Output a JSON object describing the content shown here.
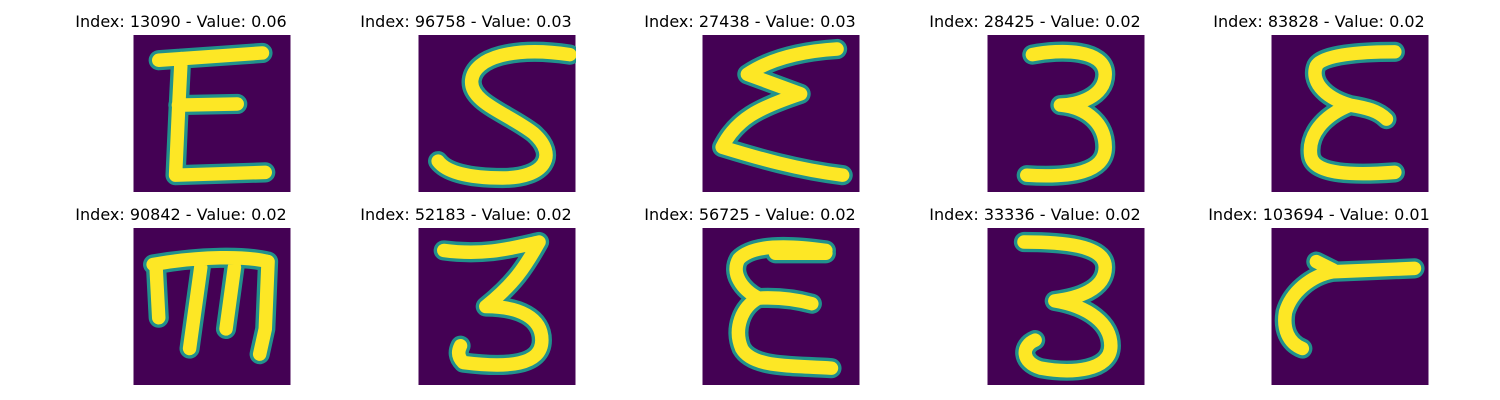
{
  "colors": {
    "background": "#440154",
    "mid": "#21918c",
    "foreground": "#fde725"
  },
  "panels": [
    {
      "title": "Index: 13090 - Value: 0.06",
      "glyph": "Ɛ"
    },
    {
      "title": "Index: 96758 - Value: 0.03",
      "glyph": "S"
    },
    {
      "title": "Index: 27438 - Value: 0.03",
      "glyph": "Σ"
    },
    {
      "title": "Index: 28425 - Value: 0.02",
      "glyph": "3"
    },
    {
      "title": "Index: 83828 - Value: 0.02",
      "glyph": "Ɛ"
    },
    {
      "title": "Index: 90842 - Value: 0.02",
      "glyph": "m"
    },
    {
      "title": "Index: 52183 - Value: 0.02",
      "glyph": "3"
    },
    {
      "title": "Index: 56725 - Value: 0.02",
      "glyph": "Ɛ"
    },
    {
      "title": "Index: 33336 - Value: 0.02",
      "glyph": "3"
    },
    {
      "title": "Index: 103694 - Value: 0.01",
      "glyph": "c"
    }
  ]
}
